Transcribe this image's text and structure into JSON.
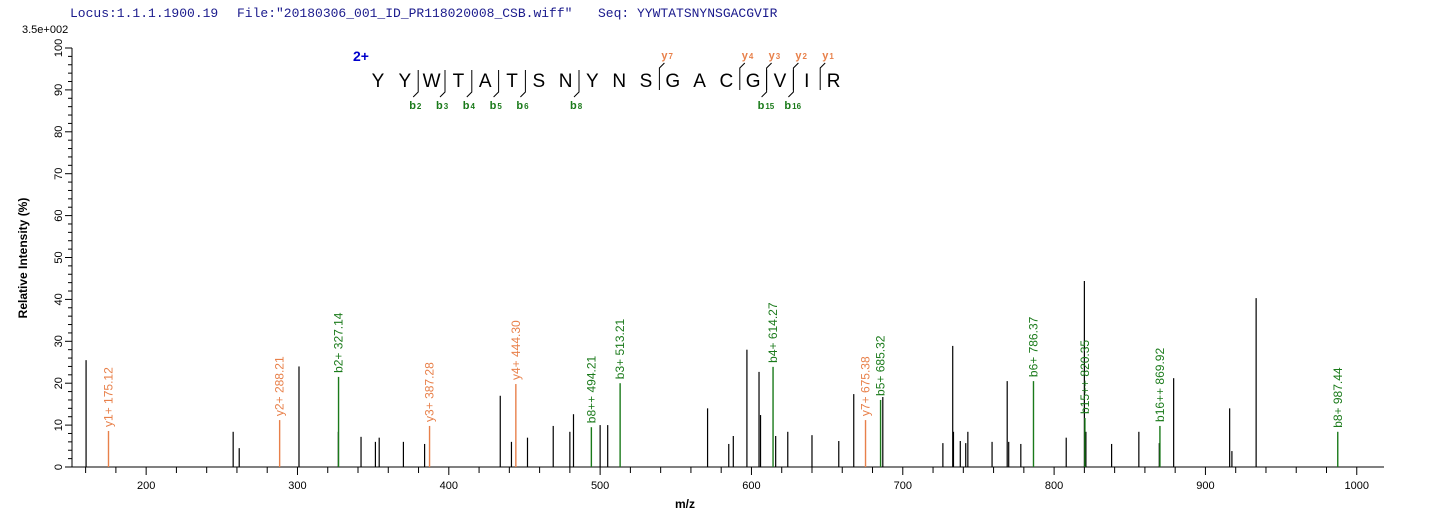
{
  "header": {
    "locus": "Locus:1.1.1.1900.19",
    "file": "File:\"20180306_001_ID_PR118020008_CSB.wiff\"",
    "seq": "Seq: YYWTATSNYNSGACGVIR",
    "scale": "3.5e+002"
  },
  "colors": {
    "b_ion": "#1a7a1a",
    "y_ion": "#e8804a",
    "charge": "#0000cc",
    "peak": "#000000",
    "header": "#1a1a8c"
  },
  "peptide": {
    "charge": "2+",
    "sequence": [
      "Y",
      "Y",
      "W",
      "T",
      "A",
      "T",
      "S",
      "N",
      "Y",
      "N",
      "S",
      "G",
      "A",
      "C",
      "G",
      "V",
      "I",
      "R"
    ],
    "b_ions": [
      {
        "label": "b",
        "n": "2"
      },
      {
        "label": "b",
        "n": "3"
      },
      {
        "label": "b",
        "n": "4"
      },
      {
        "label": "b",
        "n": "5"
      },
      {
        "label": "b",
        "n": "6"
      },
      {
        "label": "b",
        "n": "8"
      },
      {
        "label": "b",
        "n": "15"
      },
      {
        "label": "b",
        "n": "16"
      }
    ],
    "y_ions": [
      {
        "label": "y",
        "n": "7"
      },
      {
        "label": "y",
        "n": "4"
      },
      {
        "label": "y",
        "n": "3"
      },
      {
        "label": "y",
        "n": "2"
      },
      {
        "label": "y",
        "n": "1"
      }
    ]
  },
  "chart_data": {
    "type": "bar",
    "xlabel": "m/z",
    "ylabel": "Relative   Intensity (%)",
    "xlim": [
      151,
      1018
    ],
    "ylim": [
      0,
      100
    ],
    "x_ticks": [
      "200",
      "300",
      "400",
      "500",
      "600",
      "700",
      "800",
      "900",
      "1000"
    ],
    "y_ticks": [
      "0",
      "10",
      "20",
      "30",
      "40",
      "50",
      "60",
      "70",
      "80",
      "90",
      "100"
    ],
    "grid": false,
    "unannotated_peaks": [
      [
        160.3,
        25.5
      ],
      [
        257.5,
        8.4
      ],
      [
        261.5,
        4.5
      ],
      [
        301,
        24
      ],
      [
        327,
        8.4
      ],
      [
        342,
        7.2
      ],
      [
        351.5,
        6
      ],
      [
        354,
        7
      ],
      [
        370,
        6
      ],
      [
        384,
        5.5
      ],
      [
        434,
        17
      ],
      [
        441.4,
        6
      ],
      [
        452,
        7
      ],
      [
        469,
        9.8
      ],
      [
        480,
        8.4
      ],
      [
        482.4,
        12.6
      ],
      [
        500,
        10
      ],
      [
        505,
        10
      ],
      [
        571,
        14
      ],
      [
        585,
        5.5
      ],
      [
        588,
        7.4
      ],
      [
        597,
        28
      ],
      [
        605,
        22.7
      ],
      [
        606,
        12.4
      ],
      [
        616,
        7.4
      ],
      [
        624,
        8.4
      ],
      [
        640,
        7.6
      ],
      [
        657.7,
        6.2
      ],
      [
        667.6,
        17.4
      ],
      [
        686.8,
        16.7
      ],
      [
        726.5,
        5.7
      ],
      [
        733,
        28.9
      ],
      [
        733.5,
        8.4
      ],
      [
        738,
        6.2
      ],
      [
        741.6,
        5.7
      ],
      [
        743,
        8.4
      ],
      [
        759,
        6
      ],
      [
        769,
        20.5
      ],
      [
        770,
        6
      ],
      [
        778,
        5.5
      ],
      [
        808,
        7
      ],
      [
        820,
        44.4
      ],
      [
        821,
        8.4
      ],
      [
        838,
        5.5
      ],
      [
        856,
        8.4
      ],
      [
        869.5,
        5.7
      ],
      [
        879,
        21.2
      ],
      [
        916,
        14
      ],
      [
        917.5,
        3.8
      ],
      [
        933.5,
        40.3
      ]
    ],
    "annotated_peaks": [
      {
        "label": "y1+ 175.12",
        "mz": 175.12,
        "intensity": 8.6,
        "ion": "y"
      },
      {
        "label": "y2+ 288.21",
        "mz": 288.21,
        "intensity": 11.2,
        "ion": "y"
      },
      {
        "label": "b2+ 327.14",
        "mz": 327.14,
        "intensity": 21.5,
        "ion": "b"
      },
      {
        "label": "y3+ 387.28",
        "mz": 387.28,
        "intensity": 9.8,
        "ion": "y"
      },
      {
        "label": "y4+ 444.30",
        "mz": 444.3,
        "intensity": 19.8,
        "ion": "y"
      },
      {
        "label": "b8++ 494.21",
        "mz": 494.21,
        "intensity": 9.5,
        "ion": "b"
      },
      {
        "label": "b3+ 513.21",
        "mz": 513.21,
        "intensity": 20,
        "ion": "b"
      },
      {
        "label": "b4+ 614.27",
        "mz": 614.27,
        "intensity": 23.9,
        "ion": "b"
      },
      {
        "label": "y7+ 675.38",
        "mz": 675.38,
        "intensity": 11.2,
        "ion": "y"
      },
      {
        "label": "b5+ 685.32",
        "mz": 685.32,
        "intensity": 16,
        "ion": "b"
      },
      {
        "label": "b6+ 786.37",
        "mz": 786.37,
        "intensity": 20.5,
        "ion": "b"
      },
      {
        "label": "b15++ 820.35",
        "mz": 820.35,
        "intensity": 11.7,
        "ion": "b"
      },
      {
        "label": "b16++ 869.92",
        "mz": 869.92,
        "intensity": 9.8,
        "ion": "b"
      },
      {
        "label": "b8+ 987.44",
        "mz": 987.44,
        "intensity": 8.4,
        "ion": "b"
      }
    ]
  }
}
